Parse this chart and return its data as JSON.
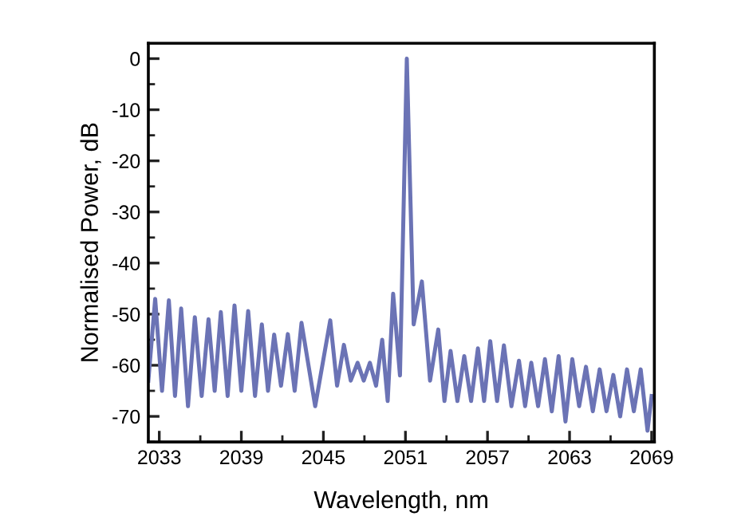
{
  "chart_data": {
    "type": "line",
    "xlabel": "Wavelength, nm",
    "ylabel": "Normalised Power, dB",
    "xlim": [
      2032.2,
      2069.2
    ],
    "xticks": [
      2033,
      2039,
      2045,
      2051,
      2057,
      2063,
      2069
    ],
    "ylim": [
      -75,
      3
    ],
    "yticks": [
      0,
      -10,
      -20,
      -30,
      -40,
      -50,
      -60,
      -70
    ],
    "grid": false,
    "marker": "none",
    "line_style": "solid",
    "series": [
      {
        "color": "#6b73b5",
        "x": [
          2032.2,
          2032.7,
          2033.2,
          2033.7,
          2034.15,
          2034.6,
          2035.1,
          2035.6,
          2036.1,
          2036.6,
          2037.05,
          2037.5,
          2038,
          2038.5,
          2039,
          2039.5,
          2040,
          2040.5,
          2040.95,
          2041.4,
          2041.9,
          2042.4,
          2042.9,
          2043.4,
          2044.4,
          2045.5,
          2046,
          2046.5,
          2047,
          2047.5,
          2047.95,
          2048.4,
          2048.85,
          2049.3,
          2049.7,
          2050.1,
          2050.6,
          2051.1,
          2051.6,
          2052.2,
          2052.8,
          2053.4,
          2053.85,
          2054.3,
          2054.8,
          2055.3,
          2055.8,
          2056.3,
          2056.75,
          2057.2,
          2057.7,
          2058.2,
          2058.75,
          2059.3,
          2059.75,
          2060.2,
          2060.7,
          2061.2,
          2061.7,
          2062.2,
          2062.7,
          2063.2,
          2063.7,
          2064.2,
          2064.7,
          2065.2,
          2065.7,
          2066.2,
          2066.7,
          2067.2,
          2067.7,
          2068.2,
          2068.7,
          2069
        ],
        "values": [
          -63,
          -47,
          -65,
          -47.3,
          -66,
          -48.9,
          -68,
          -50.6,
          -66,
          -51,
          -65,
          -49.6,
          -66,
          -48.3,
          -65,
          -49.4,
          -66,
          -52,
          -65,
          -54,
          -64,
          -53.9,
          -65,
          -51.7,
          -68,
          -51.2,
          -64,
          -56,
          -63,
          -59.5,
          -63,
          -59.5,
          -64,
          -55,
          -67,
          -46,
          -62,
          0,
          -52,
          -43.6,
          -63,
          -53,
          -67,
          -57.2,
          -67,
          -58.2,
          -67,
          -56.7,
          -67,
          -55.3,
          -67,
          -56.1,
          -68,
          -59.1,
          -68,
          -59.5,
          -68,
          -58.8,
          -69,
          -58.2,
          -71,
          -58.8,
          -68,
          -60.3,
          -69,
          -60.8,
          -69,
          -61.9,
          -70,
          -60.8,
          -69,
          -60.8,
          -72.8,
          -66
        ]
      }
    ]
  }
}
